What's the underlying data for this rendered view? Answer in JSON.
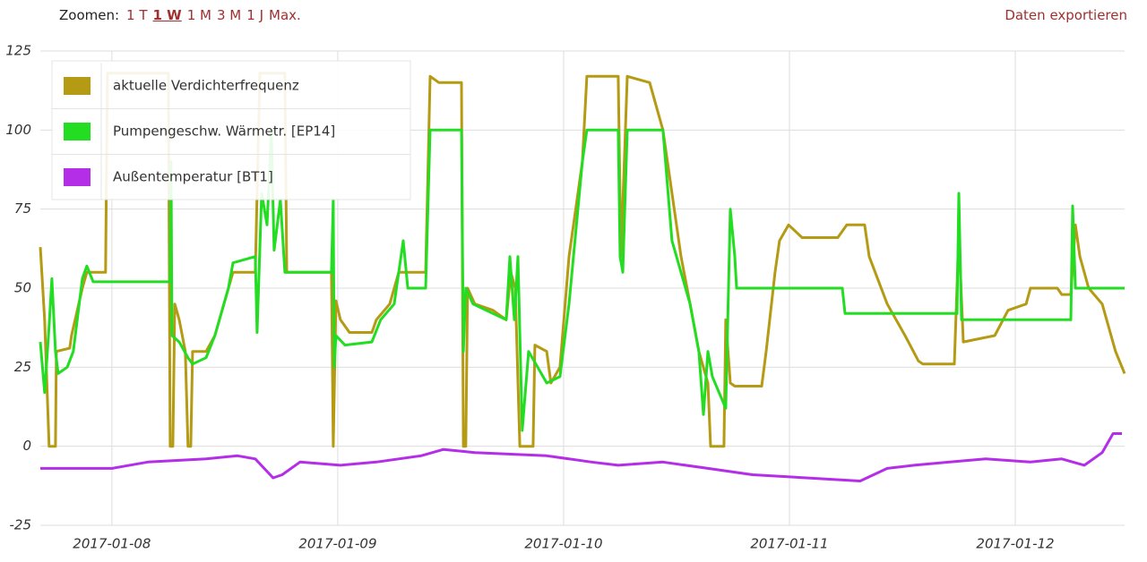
{
  "toolbar": {
    "label": "Zoomen:",
    "zoom_options": [
      {
        "label": "1 T",
        "selected": false
      },
      {
        "label": "1 W",
        "selected": true
      },
      {
        "label": "1 M",
        "selected": false
      },
      {
        "label": "3 M",
        "selected": false
      },
      {
        "label": "1 J",
        "selected": false
      },
      {
        "label": "Max.",
        "selected": false
      }
    ],
    "export": "Daten exportieren"
  },
  "chart_data": {
    "type": "line",
    "grid": true,
    "legend": "top-left",
    "xlim": [
      7.683,
      12.484
    ],
    "ylim": [
      -25,
      125
    ],
    "yticks": [
      -25,
      0,
      25,
      50,
      75,
      100,
      125
    ],
    "xticks": [
      {
        "value": 8,
        "label": "2017-01-08"
      },
      {
        "value": 9,
        "label": "2017-01-09"
      },
      {
        "value": 10,
        "label": "2017-01-10"
      },
      {
        "value": 11,
        "label": "2017-01-11"
      },
      {
        "value": 12,
        "label": "2017-01-12"
      }
    ],
    "series": [
      {
        "name": "aktuelle Verdichterfrequenz",
        "color": "#b59a14",
        "x": [
          7.683,
          7.702,
          7.722,
          7.75,
          7.754,
          7.813,
          7.821,
          7.869,
          7.889,
          7.972,
          7.98,
          8.25,
          8.258,
          8.27,
          8.278,
          8.298,
          8.325,
          8.337,
          8.349,
          8.357,
          8.417,
          8.456,
          8.516,
          8.536,
          8.635,
          8.655,
          8.766,
          8.774,
          8.972,
          8.98,
          8.992,
          9.012,
          9.052,
          9.151,
          9.171,
          9.23,
          9.27,
          9.389,
          9.409,
          9.448,
          9.548,
          9.556,
          9.567,
          9.575,
          9.607,
          9.687,
          9.746,
          9.766,
          9.786,
          9.806,
          9.865,
          9.873,
          9.925,
          9.944,
          9.984,
          10.024,
          10.083,
          10.103,
          10.242,
          10.254,
          10.282,
          10.381,
          10.44,
          10.48,
          10.52,
          10.56,
          10.599,
          10.639,
          10.651,
          10.71,
          10.718,
          10.738,
          10.758,
          10.877,
          10.897,
          10.936,
          10.956,
          10.996,
          11.056,
          11.214,
          11.254,
          11.333,
          11.353,
          11.433,
          11.512,
          11.571,
          11.591,
          11.73,
          11.75,
          11.77,
          11.909,
          11.968,
          12.048,
          12.067,
          12.186,
          12.206,
          12.246,
          12.266,
          12.286,
          12.325,
          12.385,
          12.444,
          12.484
        ],
        "values": [
          63,
          40,
          0,
          0,
          30,
          31,
          35,
          50,
          55,
          55,
          118,
          118,
          0,
          0,
          45,
          40,
          30,
          0,
          0,
          30,
          30,
          35,
          50,
          55,
          55,
          118,
          118,
          55,
          55,
          0,
          46,
          40,
          36,
          36,
          40,
          45,
          55,
          55,
          117,
          115,
          115,
          0,
          0,
          50,
          45,
          43,
          40,
          55,
          50,
          0,
          0,
          32,
          30,
          20,
          25,
          60,
          90,
          117,
          117,
          60,
          117,
          115,
          100,
          80,
          60,
          45,
          30,
          20,
          0,
          0,
          40,
          20,
          19,
          19,
          30,
          55,
          65,
          70,
          66,
          66,
          70,
          70,
          60,
          45,
          35,
          27,
          26,
          26,
          67,
          33,
          35,
          43,
          45,
          50,
          50,
          48,
          48,
          70,
          60,
          50,
          45,
          30,
          23
        ]
      },
      {
        "name": "Pumpengeschw. Wärmetr. [EP14]",
        "color": "#22dd22",
        "x": [
          7.683,
          7.702,
          7.722,
          7.734,
          7.75,
          7.762,
          7.802,
          7.829,
          7.869,
          7.889,
          7.917,
          8.258,
          8.262,
          8.266,
          8.298,
          8.337,
          8.357,
          8.417,
          8.456,
          8.516,
          8.536,
          8.635,
          8.643,
          8.663,
          8.687,
          8.706,
          8.718,
          8.746,
          8.766,
          8.972,
          8.98,
          8.984,
          8.992,
          9.032,
          9.151,
          9.19,
          9.25,
          9.29,
          9.31,
          9.389,
          9.409,
          9.548,
          9.556,
          9.567,
          9.599,
          9.687,
          9.746,
          9.762,
          9.782,
          9.798,
          9.817,
          9.845,
          9.885,
          9.925,
          9.984,
          10.024,
          10.083,
          10.103,
          10.242,
          10.25,
          10.262,
          10.282,
          10.44,
          10.48,
          10.52,
          10.56,
          10.599,
          10.619,
          10.639,
          10.659,
          10.718,
          10.738,
          10.758,
          10.766,
          11.234,
          11.246,
          11.742,
          11.75,
          11.762,
          12.246,
          12.254,
          12.266,
          12.484
        ],
        "values": [
          33,
          17,
          38,
          53,
          30,
          23,
          25,
          30,
          53,
          57,
          52,
          52,
          90,
          35,
          33,
          28,
          26,
          28,
          35,
          50,
          58,
          60,
          36,
          80,
          70,
          100,
          62,
          78,
          55,
          55,
          78,
          25,
          35,
          32,
          33,
          40,
          45,
          65,
          50,
          50,
          100,
          100,
          30,
          50,
          45,
          42,
          40,
          60,
          40,
          60,
          5,
          30,
          25,
          20,
          22,
          45,
          90,
          100,
          100,
          60,
          55,
          100,
          100,
          65,
          55,
          45,
          30,
          10,
          30,
          22,
          12,
          75,
          60,
          50,
          50,
          42,
          42,
          80,
          40,
          40,
          76,
          50,
          50
        ]
      },
      {
        "name": "Außentemperatur [BT1]",
        "color": "#b42ee8",
        "x": [
          7.683,
          8.0,
          8.159,
          8.417,
          8.556,
          8.635,
          8.714,
          8.754,
          8.833,
          9.012,
          9.171,
          9.369,
          9.468,
          9.607,
          9.925,
          10.123,
          10.242,
          10.44,
          10.639,
          10.837,
          11.075,
          11.313,
          11.433,
          11.551,
          11.71,
          11.869,
          12.067,
          12.206,
          12.306,
          12.385,
          12.433,
          12.472
        ],
        "values": [
          -7,
          -7,
          -5,
          -4,
          -3,
          -4,
          -10,
          -9,
          -5,
          -6,
          -5,
          -3,
          -1,
          -2,
          -3,
          -5,
          -6,
          -5,
          -7,
          -9,
          -10,
          -11,
          -7,
          -6,
          -5,
          -4,
          -5,
          -4,
          -6,
          -2,
          4,
          4
        ]
      }
    ]
  }
}
